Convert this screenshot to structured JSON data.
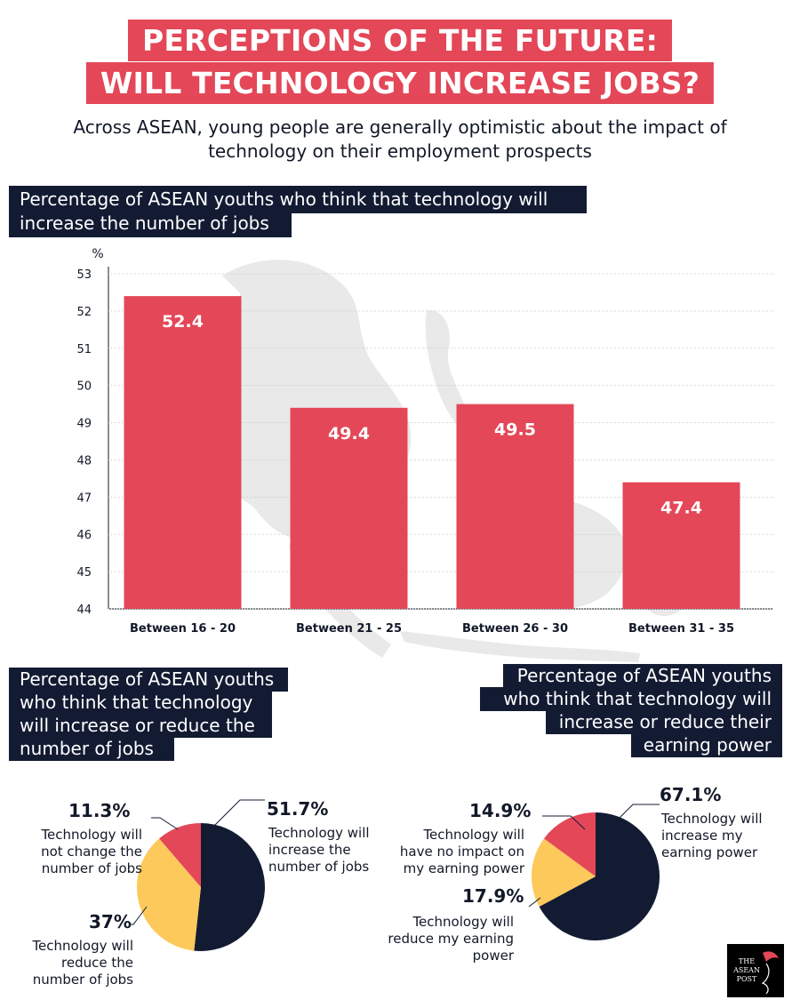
{
  "header": {
    "title_line1": "PERCEPTIONS OF THE FUTURE:",
    "title_line2": "WILL TECHNOLOGY INCREASE JOBS?",
    "subtitle_line1": "Across ASEAN, young people are generally optimistic about the impact of",
    "subtitle_line2": "technology on their employment prospects"
  },
  "colors": {
    "red": "#e34758",
    "navy": "#131b33",
    "yellow": "#fdc95a",
    "map": "#e9e9e9"
  },
  "chart_data": [
    {
      "type": "bar",
      "title_line1": "Percentage of ASEAN youths who think that technology will",
      "title_line2": "increase the number of jobs",
      "ylabel": "%",
      "ylim": [
        44,
        53
      ],
      "yticks": [
        53,
        52,
        51,
        50,
        49,
        48,
        47,
        46,
        45,
        44
      ],
      "grid": true,
      "categories": [
        "Between 16 - 20",
        "Between 21 - 25",
        "Between 26 - 30",
        "Between 31 - 35"
      ],
      "values": [
        52.4,
        49.4,
        49.5,
        47.4
      ],
      "value_labels": [
        "52.4",
        "49.4",
        "49.5",
        "47.4"
      ]
    },
    {
      "type": "pie",
      "title_lines": [
        "Percentage of ASEAN youths",
        "who think that technology",
        "will increase or reduce the",
        "number of jobs"
      ],
      "slices": [
        {
          "label_pct": "51.7%",
          "value": 51.7,
          "desc": [
            "Technology will",
            "increase the",
            "number of jobs"
          ],
          "color": "#131b33"
        },
        {
          "label_pct": "37%",
          "value": 37,
          "desc": [
            "Technology will",
            "reduce the",
            "number of jobs"
          ],
          "color": "#fdc95a"
        },
        {
          "label_pct": "11.3%",
          "value": 11.3,
          "desc": [
            "Technology will",
            "not change the",
            "number of jobs"
          ],
          "color": "#e34758"
        }
      ]
    },
    {
      "type": "pie",
      "title_lines": [
        "Percentage of ASEAN youths",
        "who think that technology will",
        "increase or reduce their",
        "earning power"
      ],
      "slices": [
        {
          "label_pct": "67.1%",
          "value": 67.1,
          "desc": [
            "Technology will",
            "increase my",
            "earning power"
          ],
          "color": "#131b33"
        },
        {
          "label_pct": "17.9%",
          "value": 17.9,
          "desc": [
            "Technology will",
            "reduce my earning",
            "power"
          ],
          "color": "#fdc95a"
        },
        {
          "label_pct": "14.9%",
          "value": 14.9,
          "desc": [
            "Technology will",
            "have no impact on",
            "my earning power"
          ],
          "color": "#e34758"
        }
      ]
    }
  ],
  "logo": {
    "line1": "THE",
    "line2": "ASEAN",
    "line3": "POST"
  }
}
